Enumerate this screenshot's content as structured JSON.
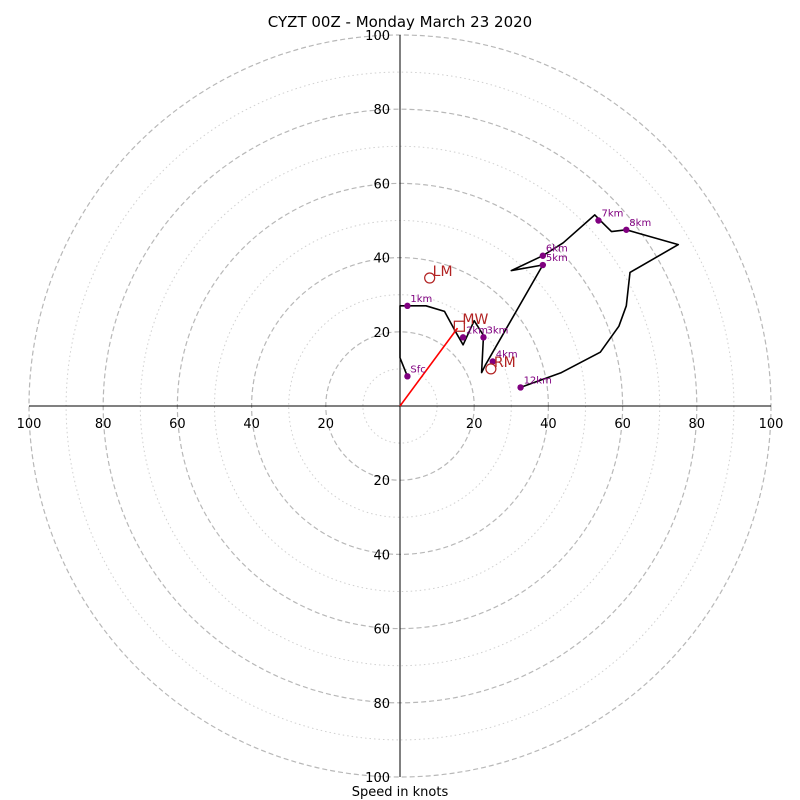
{
  "chart_data": {
    "type": "hodograph",
    "title": "CYZT 00Z - Monday March 23 2020",
    "xlabel": "Speed in knots",
    "rlim": [
      0,
      100
    ],
    "ring_labels": [
      "20",
      "40",
      "60",
      "80",
      "100"
    ],
    "colors": {
      "trace": "#000000",
      "height_markers": "#800080",
      "motion_markers": "#b22222",
      "mean_wind_vector": "#ff0000",
      "rings_major": "#b8b8b8",
      "rings_minor": "#d0d0d0"
    },
    "hodograph_trace": [
      [
        2,
        8
      ],
      [
        0,
        13
      ],
      [
        0,
        17
      ],
      [
        0,
        27
      ],
      [
        2,
        27
      ],
      [
        7,
        27
      ],
      [
        12,
        25.5
      ],
      [
        15,
        20
      ],
      [
        17,
        16.5
      ],
      [
        20,
        23
      ],
      [
        22.5,
        19
      ],
      [
        22,
        9
      ],
      [
        23,
        11
      ],
      [
        38.5,
        38
      ],
      [
        30,
        36.5
      ],
      [
        38.5,
        40.5
      ],
      [
        44,
        44
      ],
      [
        52.5,
        51.5
      ],
      [
        55,
        49
      ],
      [
        57,
        47
      ],
      [
        61,
        47.5
      ],
      [
        75,
        43.5
      ],
      [
        62,
        36
      ],
      [
        61,
        27
      ],
      [
        59,
        21.5
      ],
      [
        54,
        14.5
      ],
      [
        43.5,
        9
      ],
      [
        32.5,
        5
      ]
    ],
    "height_points": [
      {
        "label": "Sfc",
        "u": 2,
        "v": 8
      },
      {
        "label": "1km",
        "u": 2,
        "v": 27
      },
      {
        "label": "2km",
        "u": 17,
        "v": 18.5
      },
      {
        "label": "3km",
        "u": 22.5,
        "v": 18.5
      },
      {
        "label": "4km",
        "u": 25,
        "v": 12
      },
      {
        "label": "5km",
        "u": 38.5,
        "v": 38
      },
      {
        "label": "6km",
        "u": 38.5,
        "v": 40.5
      },
      {
        "label": "7km",
        "u": 53.5,
        "v": 50
      },
      {
        "label": "8km",
        "u": 61,
        "v": 47.5
      },
      {
        "label": "12km",
        "u": 32.5,
        "v": 5
      }
    ],
    "storm_motion": [
      {
        "label": "LM",
        "u": 8,
        "v": 34.5,
        "marker": "circle"
      },
      {
        "label": "RM",
        "u": 24.5,
        "v": 10,
        "marker": "circle"
      },
      {
        "label": "MW",
        "u": 16,
        "v": 21.5,
        "marker": "square"
      }
    ],
    "mean_wind_vector": {
      "u": 15.5,
      "v": 21
    }
  }
}
